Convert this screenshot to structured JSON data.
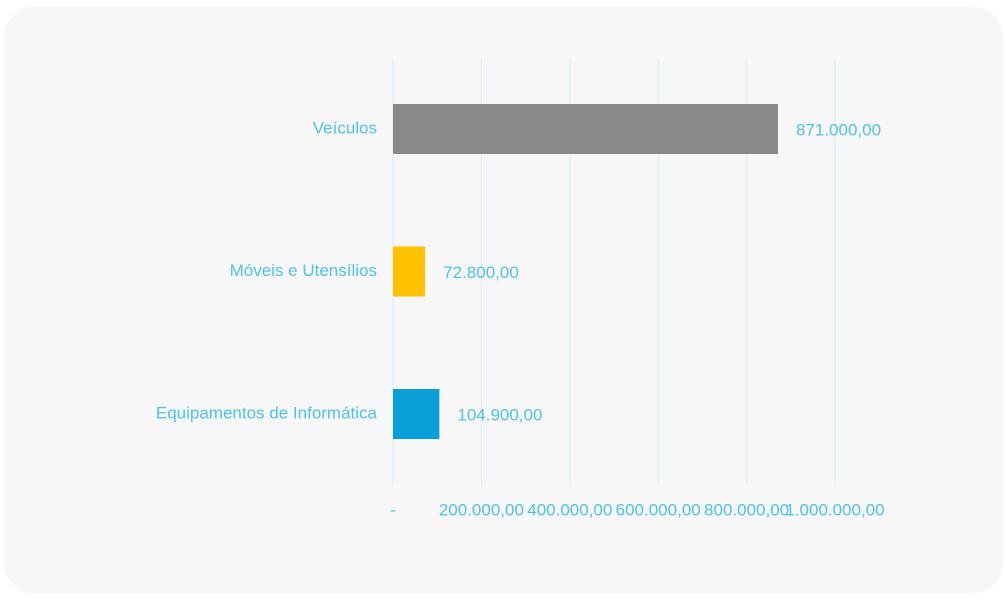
{
  "chart_data": {
    "type": "bar",
    "orientation": "horizontal",
    "categories": [
      "Veículos",
      "Móveis e Utensílios",
      "Equipamentos de Informática"
    ],
    "values": [
      871000,
      72800,
      104900
    ],
    "value_labels": [
      "871.000,00",
      "72.800,00",
      "104.900,00"
    ],
    "colors": [
      "#898989",
      "#ffc000",
      "#0b9fd8"
    ],
    "xlim": [
      0,
      1000000
    ],
    "xticks": [
      {
        "value": 0,
        "label": "-"
      },
      {
        "value": 200000,
        "label": "200.000,00"
      },
      {
        "value": 400000,
        "label": "400.000,00"
      },
      {
        "value": 600000,
        "label": "600.000,00"
      },
      {
        "value": 800000,
        "label": "800.000,00"
      },
      {
        "value": 1000000,
        "label": "1.000.000,00"
      }
    ],
    "grid": true
  }
}
